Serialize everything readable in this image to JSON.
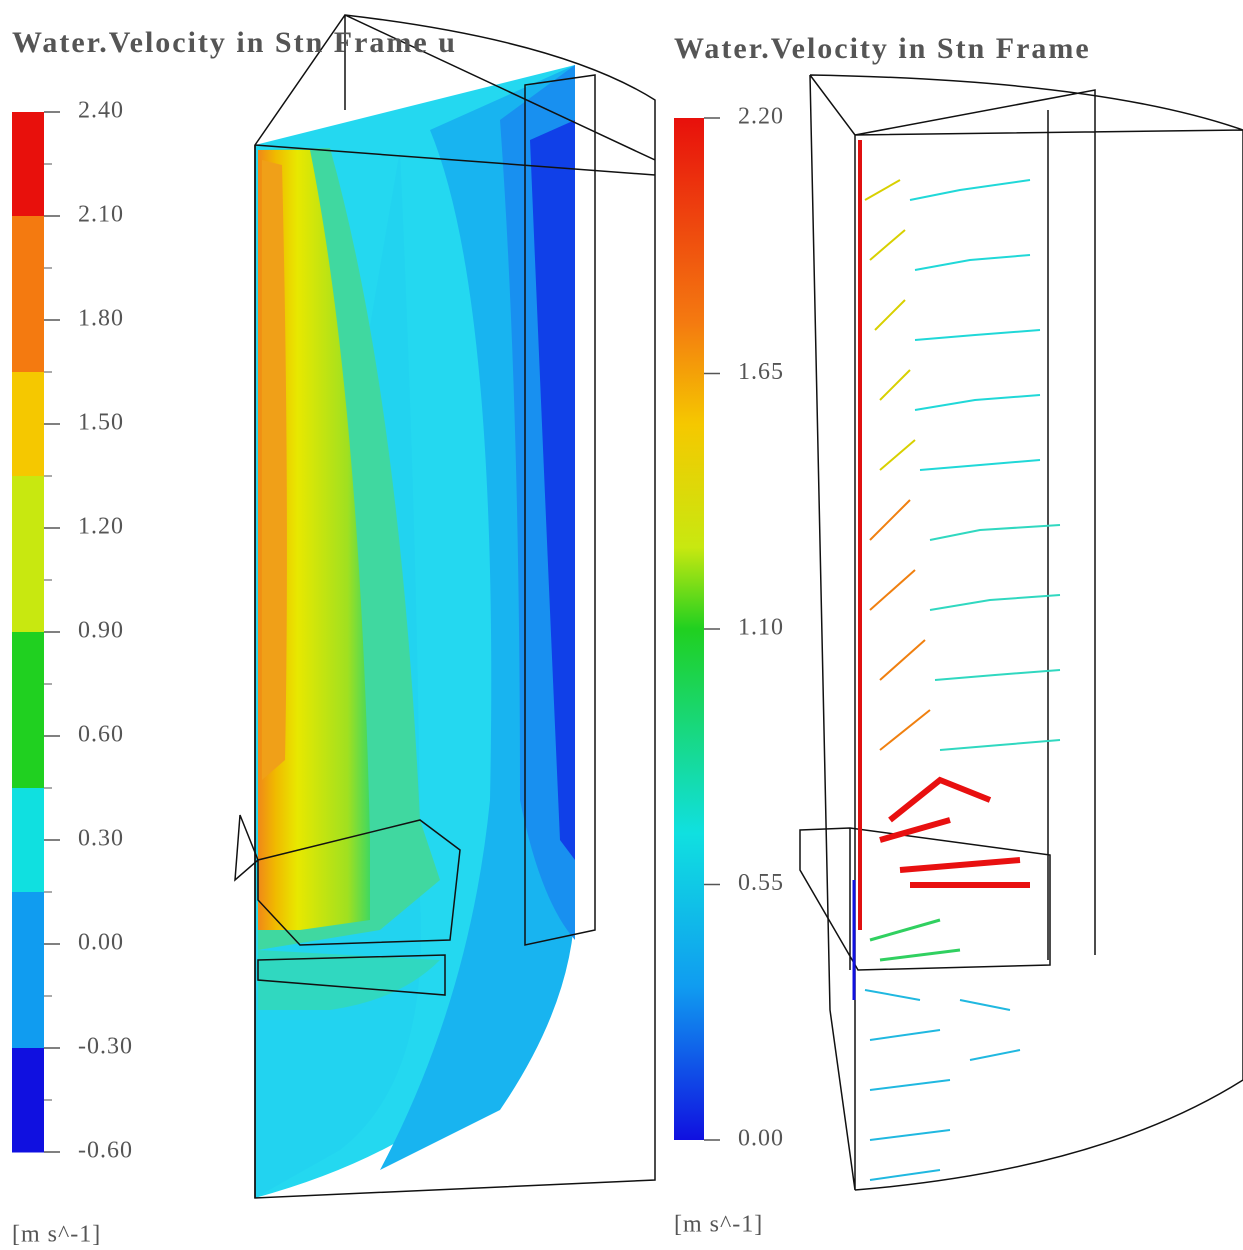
{
  "panels": [
    {
      "title": "Water.Velocity in Stn Frame u",
      "colorbar": {
        "ticks": [
          {
            "value": 2.4,
            "label": "2.40"
          },
          {
            "value": 2.1,
            "label": "2.10"
          },
          {
            "value": 1.8,
            "label": "1.80"
          },
          {
            "value": 1.5,
            "label": "1.50"
          },
          {
            "value": 1.2,
            "label": "1.20"
          },
          {
            "value": 0.9,
            "label": "0.90"
          },
          {
            "value": 0.6,
            "label": "0.60"
          },
          {
            "value": 0.3,
            "label": "0.30"
          },
          {
            "value": 0,
            "label": "0.00"
          },
          {
            "value": -0.3,
            "label": "-0.30"
          },
          {
            "value": -0.6,
            "label": "-0.60"
          }
        ],
        "unit": "[m s^-1]"
      }
    },
    {
      "title": "Water.Velocity in Stn Frame",
      "colorbar": {
        "ticks": [
          {
            "value": 2.2,
            "label": "2.20"
          },
          {
            "value": 1.65,
            "label": "1.65"
          },
          {
            "value": 1.1,
            "label": "1.10"
          },
          {
            "value": 0.55,
            "label": "0.55"
          },
          {
            "value": 0,
            "label": "0.00"
          }
        ],
        "unit": "[m s^-1]"
      }
    }
  ]
}
